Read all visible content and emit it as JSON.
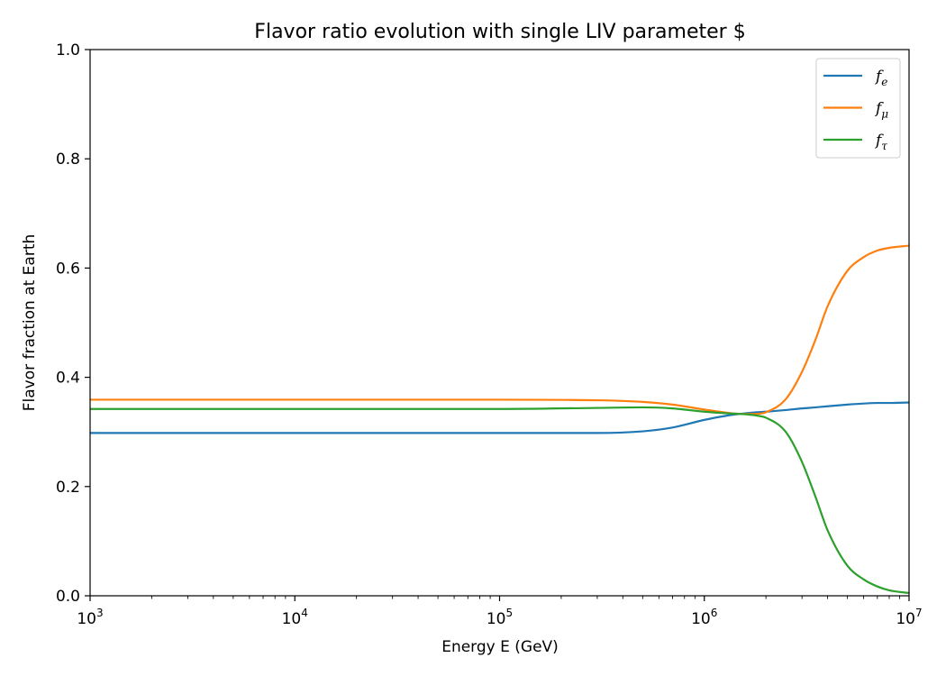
{
  "chart_data": {
    "type": "line",
    "title": "Flavor ratio evolution with single LIV parameter $",
    "xlabel": "Energy E (GeV)",
    "ylabel": "Flavor fraction at Earth",
    "xscale": "log",
    "xlim": [
      1000,
      10000000
    ],
    "ylim": [
      0.0,
      1.0
    ],
    "grid": false,
    "legend_position": "top-right",
    "x_ticks": [
      {
        "base": "10",
        "exp": "3",
        "value": 1000
      },
      {
        "base": "10",
        "exp": "4",
        "value": 10000
      },
      {
        "base": "10",
        "exp": "5",
        "value": 100000
      },
      {
        "base": "10",
        "exp": "6",
        "value": 1000000
      },
      {
        "base": "10",
        "exp": "7",
        "value": 10000000
      }
    ],
    "y_ticks": [
      {
        "label": "0.0",
        "value": 0.0
      },
      {
        "label": "0.2",
        "value": 0.2
      },
      {
        "label": "0.4",
        "value": 0.4
      },
      {
        "label": "0.6",
        "value": 0.6
      },
      {
        "label": "0.8",
        "value": 0.8
      },
      {
        "label": "1.0",
        "value": 1.0
      }
    ],
    "x": [
      1000,
      10000,
      100000,
      300000,
      500000,
      700000,
      1000000,
      1300000,
      1500000,
      1800000,
      2000000,
      2500000,
      3000000,
      3500000,
      4000000,
      5000000,
      6000000,
      7000000,
      8000000,
      10000000
    ],
    "series": [
      {
        "name_base": "f",
        "name_sub": "e",
        "color": "#1f77b4",
        "values": [
          0.298,
          0.298,
          0.298,
          0.298,
          0.301,
          0.308,
          0.322,
          0.33,
          0.333,
          0.336,
          0.337,
          0.34,
          0.343,
          0.345,
          0.347,
          0.35,
          0.352,
          0.353,
          0.353,
          0.354
        ]
      },
      {
        "name_base": "f",
        "name_sub": "μ",
        "color": "#ff7f0e",
        "values": [
          0.359,
          0.359,
          0.359,
          0.358,
          0.355,
          0.35,
          0.341,
          0.335,
          0.333,
          0.333,
          0.336,
          0.36,
          0.41,
          0.47,
          0.53,
          0.595,
          0.62,
          0.632,
          0.637,
          0.641
        ]
      },
      {
        "name_base": "f",
        "name_sub": "τ",
        "color": "#2ca02c",
        "values": [
          0.342,
          0.342,
          0.342,
          0.344,
          0.345,
          0.343,
          0.337,
          0.334,
          0.333,
          0.33,
          0.326,
          0.3,
          0.245,
          0.18,
          0.12,
          0.055,
          0.03,
          0.017,
          0.01,
          0.005
        ]
      }
    ]
  }
}
